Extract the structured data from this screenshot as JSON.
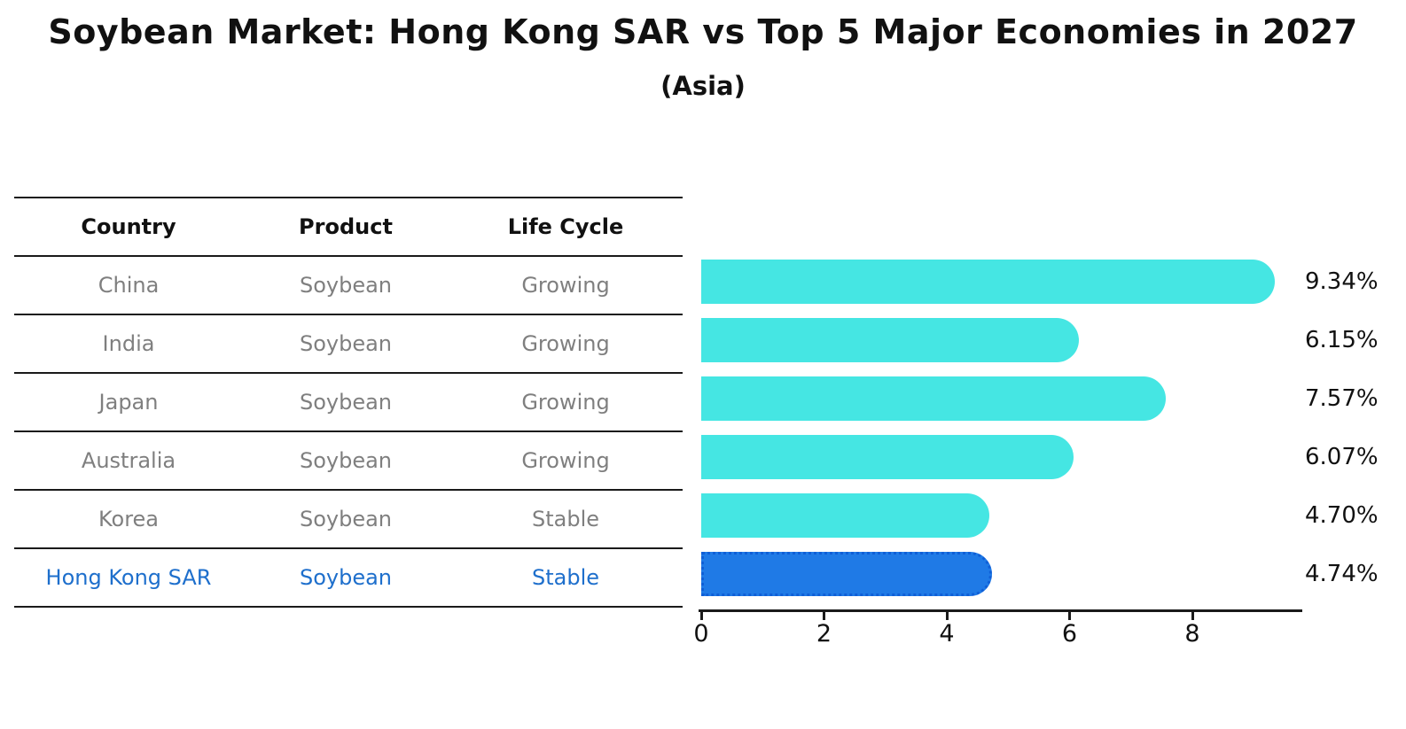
{
  "title": "Soybean Market: Hong Kong SAR vs Top 5 Major Economies in 2027",
  "subtitle": "(Asia)",
  "table": {
    "headers": [
      "Country",
      "Product",
      "Life Cycle"
    ],
    "rows": [
      {
        "country": "China",
        "product": "Soybean",
        "life_cycle": "Growing",
        "highlight": false
      },
      {
        "country": "India",
        "product": "Soybean",
        "life_cycle": "Growing",
        "highlight": false
      },
      {
        "country": "Japan",
        "product": "Soybean",
        "life_cycle": "Growing",
        "highlight": false
      },
      {
        "country": "Australia",
        "product": "Soybean",
        "life_cycle": "Growing",
        "highlight": false
      },
      {
        "country": "Korea",
        "product": "Soybean",
        "life_cycle": "Stable",
        "highlight": false
      },
      {
        "country": "Hong Kong SAR",
        "product": "Soybean",
        "life_cycle": "Stable",
        "highlight": true
      }
    ]
  },
  "chart_data": {
    "type": "bar",
    "orientation": "horizontal",
    "title": "Soybean Market: Hong Kong SAR vs Top 5 Major Economies in 2027",
    "subtitle": "(Asia)",
    "categories": [
      "China",
      "India",
      "Japan",
      "Australia",
      "Korea",
      "Hong Kong SAR"
    ],
    "values": [
      9.34,
      6.15,
      7.57,
      6.07,
      4.7,
      4.74
    ],
    "value_labels": [
      "9.34%",
      "6.15%",
      "7.57%",
      "6.07%",
      "4.70%",
      "4.74%"
    ],
    "x_ticks": [
      "0",
      "2",
      "4",
      "6",
      "8"
    ],
    "x_tick_values": [
      0,
      2,
      4,
      6,
      8
    ],
    "xlim": [
      0,
      9.8
    ],
    "grid": false,
    "legend": false,
    "highlight_index": 5
  },
  "colors": {
    "bar": "#45e6e3",
    "highlight_bar": "#1f7ae6",
    "highlight_border": "#0f5fd7",
    "highlight_text": "#1e6fcc",
    "row_text": "#7f7f7f",
    "text": "#111111"
  }
}
